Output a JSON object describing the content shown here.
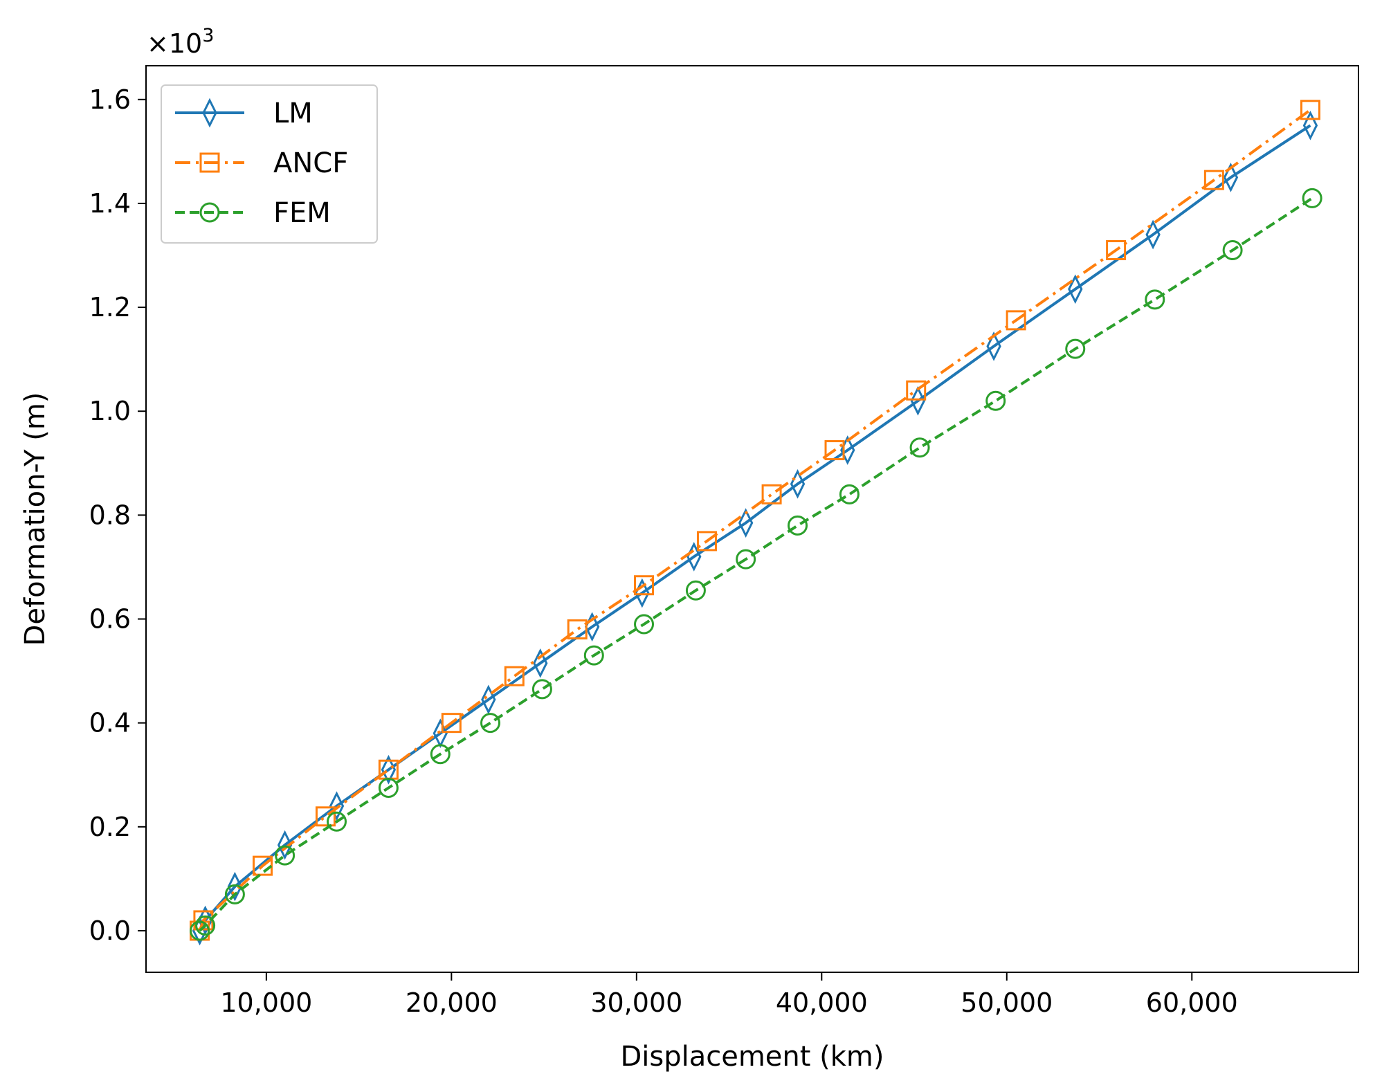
{
  "chart_data": {
    "type": "line",
    "xlabel": "Displacement (km)",
    "ylabel": "Deformation-Y (m)",
    "y_multiplier": "×10",
    "y_multiplier_exp": "3",
    "xlim": [
      3500,
      69000
    ],
    "ylim": [
      -0.08,
      1.665
    ],
    "x_ticks": [
      10000,
      20000,
      30000,
      40000,
      50000,
      60000
    ],
    "x_tick_labels": [
      "10,000",
      "20,000",
      "30,000",
      "40,000",
      "50,000",
      "60,000"
    ],
    "y_ticks": [
      0.0,
      0.2,
      0.4,
      0.6,
      0.8,
      1.0,
      1.2,
      1.4,
      1.6
    ],
    "y_tick_labels": [
      "0.0",
      "0.2",
      "0.4",
      "0.6",
      "0.8",
      "1.0",
      "1.2",
      "1.4",
      "1.6"
    ],
    "grid": false,
    "legend_position": "top-left",
    "series": [
      {
        "name": "LM",
        "color": "#1f77b4",
        "line_style": "solid",
        "marker": "thin-diamond",
        "x": [
          6400,
          6700,
          8300,
          11000,
          13800,
          16600,
          19400,
          22000,
          24800,
          27600,
          30300,
          33100,
          35900,
          38700,
          41400,
          45200,
          49300,
          53700,
          57900,
          62100,
          66400
        ],
        "y": [
          0.0,
          0.02,
          0.085,
          0.165,
          0.24,
          0.31,
          0.38,
          0.445,
          0.515,
          0.585,
          0.65,
          0.72,
          0.785,
          0.86,
          0.925,
          1.02,
          1.125,
          1.235,
          1.34,
          1.45,
          1.55
        ]
      },
      {
        "name": "ANCF",
        "color": "#ff7f0e",
        "line_style": "dashdot",
        "marker": "square",
        "x": [
          6400,
          6600,
          9800,
          13200,
          16600,
          20000,
          23400,
          26800,
          30400,
          33800,
          37300,
          40700,
          45100,
          50500,
          55900,
          61200,
          66400
        ],
        "y": [
          0.0,
          0.02,
          0.125,
          0.22,
          0.31,
          0.4,
          0.49,
          0.58,
          0.665,
          0.75,
          0.84,
          0.925,
          1.04,
          1.175,
          1.31,
          1.445,
          1.58
        ]
      },
      {
        "name": "FEM",
        "color": "#2ca02c",
        "line_style": "dashed",
        "marker": "circle",
        "x": [
          6400,
          6700,
          8300,
          11000,
          13800,
          16600,
          19400,
          22100,
          24900,
          27700,
          30400,
          33200,
          35900,
          38700,
          41500,
          45300,
          49400,
          53700,
          58000,
          62200,
          66500
        ],
        "y": [
          0.0,
          0.01,
          0.07,
          0.145,
          0.21,
          0.275,
          0.34,
          0.4,
          0.465,
          0.53,
          0.59,
          0.655,
          0.715,
          0.78,
          0.84,
          0.93,
          1.02,
          1.12,
          1.215,
          1.31,
          1.41
        ]
      }
    ]
  }
}
